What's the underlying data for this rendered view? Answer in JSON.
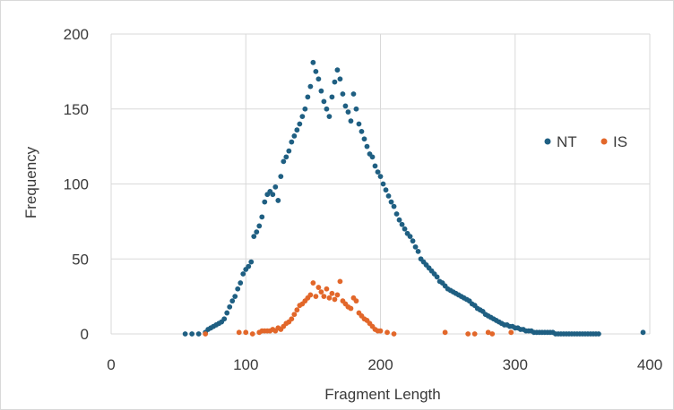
{
  "chart_data": {
    "type": "scatter",
    "title": "",
    "xlabel": "Fragment Length",
    "ylabel": "Frequency",
    "xlim": [
      0,
      400
    ],
    "ylim": [
      0,
      200
    ],
    "xticks": [
      0,
      100,
      200,
      300,
      400
    ],
    "yticks": [
      0,
      50,
      100,
      150,
      200
    ],
    "grid": "major gridlines on both axes",
    "legend": "right",
    "series": [
      {
        "name": "NT",
        "color": "#1f5f82",
        "points": [
          [
            55,
            0
          ],
          [
            60,
            0
          ],
          [
            65,
            0
          ],
          [
            70,
            1
          ],
          [
            72,
            3
          ],
          [
            74,
            4
          ],
          [
            76,
            5
          ],
          [
            78,
            6
          ],
          [
            80,
            7
          ],
          [
            82,
            8
          ],
          [
            84,
            10
          ],
          [
            86,
            14
          ],
          [
            88,
            18
          ],
          [
            90,
            22
          ],
          [
            92,
            25
          ],
          [
            94,
            30
          ],
          [
            96,
            34
          ],
          [
            98,
            40
          ],
          [
            100,
            43
          ],
          [
            102,
            45
          ],
          [
            104,
            48
          ],
          [
            106,
            65
          ],
          [
            108,
            68
          ],
          [
            110,
            72
          ],
          [
            112,
            78
          ],
          [
            114,
            88
          ],
          [
            116,
            93
          ],
          [
            118,
            95
          ],
          [
            120,
            93
          ],
          [
            122,
            98
          ],
          [
            124,
            89
          ],
          [
            126,
            105
          ],
          [
            128,
            115
          ],
          [
            130,
            118
          ],
          [
            132,
            122
          ],
          [
            134,
            128
          ],
          [
            136,
            132
          ],
          [
            138,
            136
          ],
          [
            140,
            140
          ],
          [
            142,
            145
          ],
          [
            144,
            150
          ],
          [
            146,
            158
          ],
          [
            148,
            165
          ],
          [
            150,
            181
          ],
          [
            152,
            175
          ],
          [
            154,
            170
          ],
          [
            156,
            162
          ],
          [
            158,
            155
          ],
          [
            160,
            150
          ],
          [
            162,
            145
          ],
          [
            164,
            158
          ],
          [
            166,
            168
          ],
          [
            168,
            176
          ],
          [
            170,
            170
          ],
          [
            172,
            160
          ],
          [
            174,
            152
          ],
          [
            176,
            148
          ],
          [
            178,
            142
          ],
          [
            180,
            160
          ],
          [
            182,
            150
          ],
          [
            184,
            140
          ],
          [
            186,
            135
          ],
          [
            188,
            130
          ],
          [
            190,
            125
          ],
          [
            192,
            120
          ],
          [
            194,
            118
          ],
          [
            196,
            112
          ],
          [
            198,
            108
          ],
          [
            200,
            105
          ],
          [
            202,
            100
          ],
          [
            204,
            96
          ],
          [
            206,
            92
          ],
          [
            208,
            88
          ],
          [
            210,
            85
          ],
          [
            212,
            80
          ],
          [
            214,
            76
          ],
          [
            216,
            73
          ],
          [
            218,
            70
          ],
          [
            220,
            67
          ],
          [
            222,
            65
          ],
          [
            224,
            62
          ],
          [
            226,
            58
          ],
          [
            228,
            55
          ],
          [
            230,
            50
          ],
          [
            232,
            48
          ],
          [
            234,
            46
          ],
          [
            236,
            44
          ],
          [
            238,
            42
          ],
          [
            240,
            40
          ],
          [
            242,
            38
          ],
          [
            244,
            35
          ],
          [
            246,
            34
          ],
          [
            248,
            32
          ],
          [
            250,
            30
          ],
          [
            252,
            29
          ],
          [
            254,
            28
          ],
          [
            256,
            27
          ],
          [
            258,
            26
          ],
          [
            260,
            25
          ],
          [
            262,
            24
          ],
          [
            264,
            23
          ],
          [
            266,
            22
          ],
          [
            268,
            20
          ],
          [
            270,
            19
          ],
          [
            272,
            17
          ],
          [
            274,
            16
          ],
          [
            276,
            15
          ],
          [
            278,
            13
          ],
          [
            280,
            12
          ],
          [
            282,
            11
          ],
          [
            284,
            10
          ],
          [
            286,
            9
          ],
          [
            288,
            8
          ],
          [
            290,
            7
          ],
          [
            292,
            6
          ],
          [
            294,
            6
          ],
          [
            296,
            5
          ],
          [
            298,
            5
          ],
          [
            300,
            4
          ],
          [
            302,
            4
          ],
          [
            304,
            3
          ],
          [
            306,
            3
          ],
          [
            308,
            2
          ],
          [
            310,
            2
          ],
          [
            312,
            2
          ],
          [
            314,
            1
          ],
          [
            316,
            1
          ],
          [
            318,
            1
          ],
          [
            320,
            1
          ],
          [
            322,
            1
          ],
          [
            324,
            1
          ],
          [
            326,
            1
          ],
          [
            328,
            1
          ],
          [
            330,
            0
          ],
          [
            332,
            0
          ],
          [
            334,
            0
          ],
          [
            336,
            0
          ],
          [
            338,
            0
          ],
          [
            340,
            0
          ],
          [
            342,
            0
          ],
          [
            344,
            0
          ],
          [
            346,
            0
          ],
          [
            348,
            0
          ],
          [
            350,
            0
          ],
          [
            352,
            0
          ],
          [
            354,
            0
          ],
          [
            356,
            0
          ],
          [
            358,
            0
          ],
          [
            360,
            0
          ],
          [
            362,
            0
          ],
          [
            395,
            1
          ]
        ]
      },
      {
        "name": "IS",
        "color": "#e2672a",
        "points": [
          [
            70,
            0
          ],
          [
            95,
            1
          ],
          [
            100,
            1
          ],
          [
            105,
            0
          ],
          [
            110,
            1
          ],
          [
            112,
            2
          ],
          [
            114,
            2
          ],
          [
            116,
            2
          ],
          [
            118,
            2
          ],
          [
            120,
            3
          ],
          [
            122,
            2
          ],
          [
            124,
            4
          ],
          [
            126,
            3
          ],
          [
            128,
            5
          ],
          [
            130,
            7
          ],
          [
            132,
            8
          ],
          [
            134,
            10
          ],
          [
            136,
            13
          ],
          [
            138,
            16
          ],
          [
            140,
            19
          ],
          [
            142,
            20
          ],
          [
            144,
            22
          ],
          [
            146,
            24
          ],
          [
            148,
            26
          ],
          [
            150,
            34
          ],
          [
            152,
            25
          ],
          [
            154,
            31
          ],
          [
            156,
            28
          ],
          [
            158,
            25
          ],
          [
            160,
            30
          ],
          [
            162,
            24
          ],
          [
            164,
            27
          ],
          [
            166,
            23
          ],
          [
            168,
            26
          ],
          [
            170,
            35
          ],
          [
            172,
            22
          ],
          [
            174,
            20
          ],
          [
            176,
            18
          ],
          [
            178,
            17
          ],
          [
            180,
            24
          ],
          [
            182,
            22
          ],
          [
            184,
            14
          ],
          [
            186,
            12
          ],
          [
            188,
            10
          ],
          [
            190,
            9
          ],
          [
            192,
            7
          ],
          [
            194,
            5
          ],
          [
            196,
            3
          ],
          [
            198,
            2
          ],
          [
            200,
            2
          ],
          [
            205,
            1
          ],
          [
            210,
            0
          ],
          [
            248,
            1
          ],
          [
            265,
            0
          ],
          [
            270,
            0
          ],
          [
            280,
            1
          ],
          [
            283,
            0
          ],
          [
            297,
            1
          ]
        ]
      }
    ]
  }
}
